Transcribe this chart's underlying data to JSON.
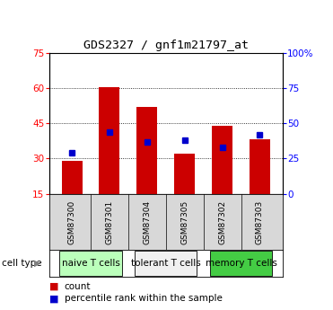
{
  "title": "GDS2327 / gnf1m21797_at",
  "samples": [
    "GSM87300",
    "GSM87301",
    "GSM87304",
    "GSM87305",
    "GSM87302",
    "GSM87303"
  ],
  "counts": [
    29,
    60.5,
    52,
    32,
    44,
    38
  ],
  "percentiles": [
    29,
    44,
    37,
    38,
    33,
    42
  ],
  "ylim_left": [
    15,
    75
  ],
  "ylim_right": [
    0,
    100
  ],
  "yticks_left": [
    15,
    30,
    45,
    60,
    75
  ],
  "yticks_right": [
    0,
    25,
    50,
    75,
    100
  ],
  "ytick_labels_right": [
    "0",
    "25",
    "50",
    "75",
    "100%"
  ],
  "bar_color": "#cc0000",
  "marker_color": "#0000cc",
  "bar_width": 0.55,
  "cell_types": [
    {
      "label": "naive T cells",
      "indices": [
        0,
        1
      ],
      "color": "#bbffbb"
    },
    {
      "label": "tolerant T cells",
      "indices": [
        2,
        3
      ],
      "color": "#f0f0f0"
    },
    {
      "label": "memory T cells",
      "indices": [
        4,
        5
      ],
      "color": "#44cc44"
    }
  ],
  "legend_count_label": "count",
  "legend_pct_label": "percentile rank within the sample",
  "cell_type_label": "cell type",
  "bg_color": "#d8d8d8"
}
